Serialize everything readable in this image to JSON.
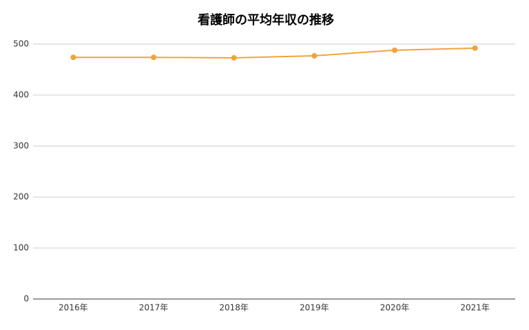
{
  "chart_data": {
    "type": "line",
    "title": "看護師の平均年収の推移",
    "categories": [
      "2016年",
      "2017年",
      "2018年",
      "2019年",
      "2020年",
      "2021年"
    ],
    "values": [
      474,
      474,
      473,
      477,
      488,
      492
    ],
    "color": "#f1a33a",
    "ylim": [
      0,
      500
    ],
    "yticks": [
      0,
      100,
      200,
      300,
      400,
      500
    ],
    "grid": true
  }
}
